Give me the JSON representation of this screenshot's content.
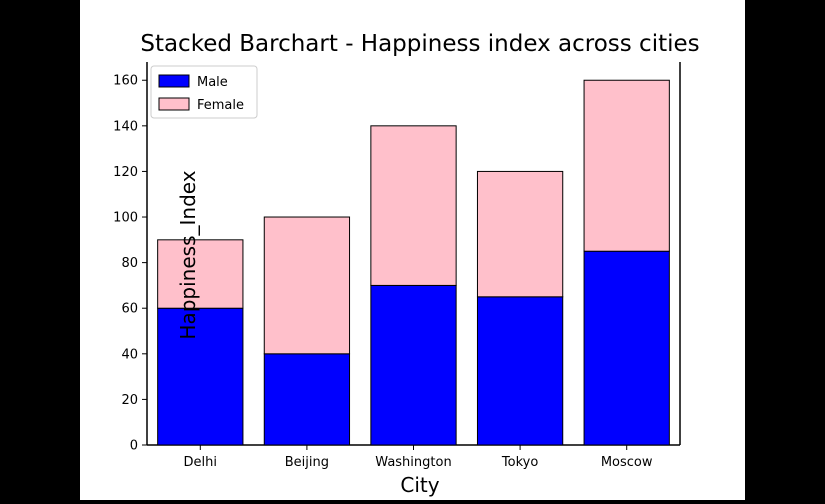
{
  "chart_data": {
    "type": "bar",
    "stacked": true,
    "title": "Stacked Barchart - Happiness index across cities",
    "xlabel": "City",
    "ylabel": "Happiness_Index",
    "categories": [
      "Delhi",
      "Beijing",
      "Washington",
      "Tokyo",
      "Moscow"
    ],
    "series": [
      {
        "name": "Male",
        "values": [
          60,
          40,
          70,
          65,
          85
        ],
        "color": "#0000ff"
      },
      {
        "name": "Female",
        "values": [
          30,
          60,
          70,
          55,
          75
        ],
        "color": "#ffc0cb"
      }
    ],
    "ylim": [
      0,
      168
    ],
    "yticks": [
      0,
      20,
      40,
      60,
      80,
      100,
      120,
      140,
      160
    ],
    "grid": false,
    "legend_position": "top-left",
    "bar_edge_color": "#000000"
  }
}
